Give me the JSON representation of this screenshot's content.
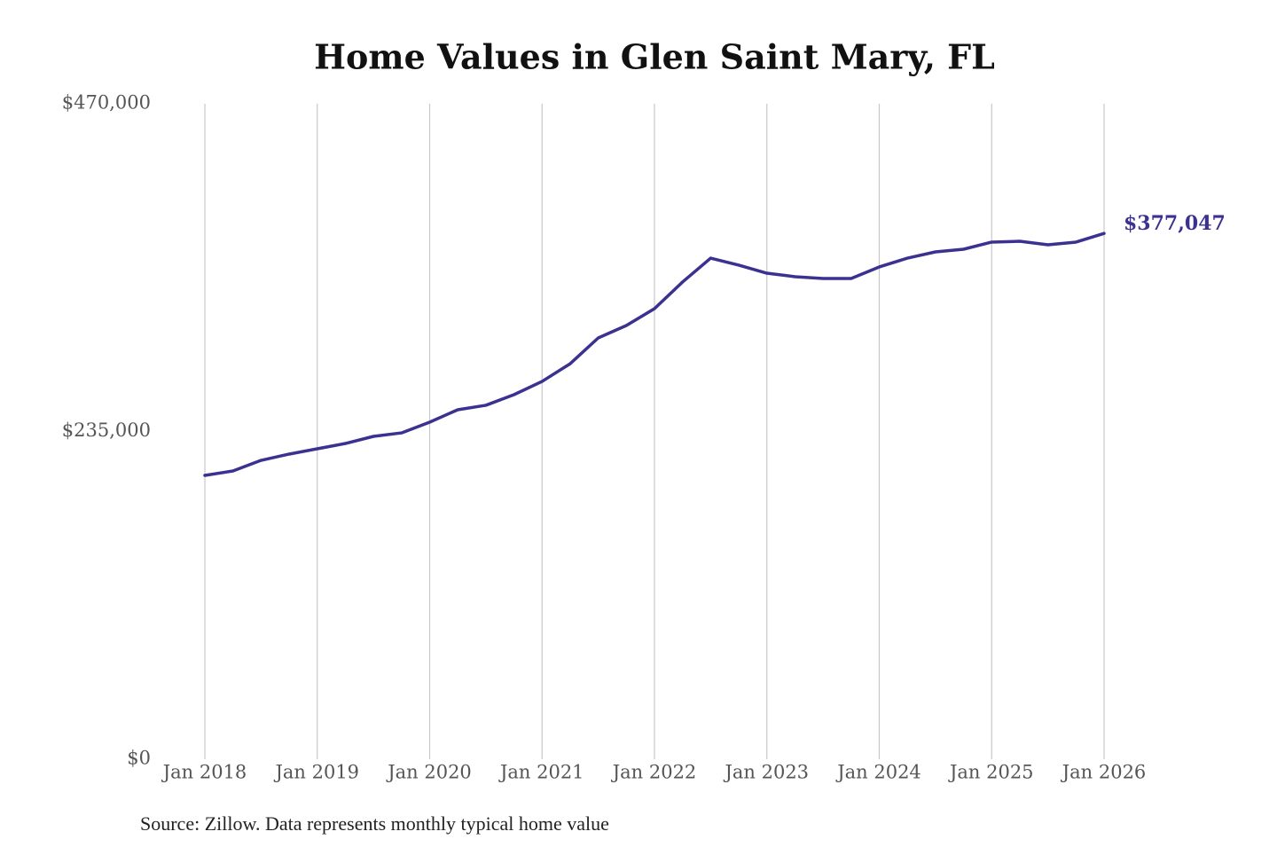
{
  "chart_data": {
    "type": "line",
    "title": "Home Values in Glen Saint Mary, FL",
    "source": "Source: Zillow. Data represents monthly typical home value",
    "x": [
      "2018-01",
      "2018-04",
      "2018-07",
      "2018-10",
      "2019-01",
      "2019-04",
      "2019-07",
      "2019-10",
      "2020-01",
      "2020-04",
      "2020-07",
      "2020-10",
      "2021-01",
      "2021-04",
      "2021-07",
      "2021-10",
      "2022-01",
      "2022-04",
      "2022-07",
      "2022-10",
      "2023-01",
      "2023-04",
      "2023-07",
      "2023-10",
      "2024-01",
      "2024-04",
      "2024-07",
      "2024-10",
      "2025-01",
      "2025-04",
      "2025-07",
      "2025-10",
      "2026-01"
    ],
    "series": [
      {
        "name": "Typical home value",
        "color": "#3a3190",
        "values": [
          203500,
          206700,
          214300,
          218800,
          222600,
          226400,
          231500,
          234000,
          241700,
          250600,
          253800,
          261400,
          270900,
          283600,
          302100,
          311000,
          323100,
          342200,
          359300,
          354300,
          348500,
          346000,
          344700,
          344700,
          353000,
          359300,
          363800,
          365700,
          370800,
          371400,
          368900,
          370800,
          377047
        ],
        "value_labels": [
          null,
          null,
          null,
          null,
          null,
          null,
          null,
          null,
          null,
          null,
          null,
          null,
          null,
          null,
          null,
          null,
          null,
          null,
          null,
          null,
          null,
          null,
          null,
          null,
          null,
          null,
          null,
          null,
          null,
          null,
          null,
          null,
          "$377,047"
        ]
      }
    ],
    "xlim": [
      "2018-01",
      "2026-01"
    ],
    "xticks": [
      {
        "value": "2018-01",
        "label": "Jan 2018"
      },
      {
        "value": "2019-01",
        "label": "Jan 2019"
      },
      {
        "value": "2020-01",
        "label": "Jan 2020"
      },
      {
        "value": "2021-01",
        "label": "Jan 2021"
      },
      {
        "value": "2022-01",
        "label": "Jan 2022"
      },
      {
        "value": "2023-01",
        "label": "Jan 2023"
      },
      {
        "value": "2024-01",
        "label": "Jan 2024"
      },
      {
        "value": "2025-01",
        "label": "Jan 2025"
      },
      {
        "value": "2026-01",
        "label": "Jan 2026"
      }
    ],
    "ylim": [
      0,
      470000
    ],
    "yticks": [
      {
        "value": 0,
        "label": "$0"
      },
      {
        "value": 235000,
        "label": "$235,000"
      },
      {
        "value": 470000,
        "label": "$470,000"
      }
    ],
    "grid": "x"
  }
}
